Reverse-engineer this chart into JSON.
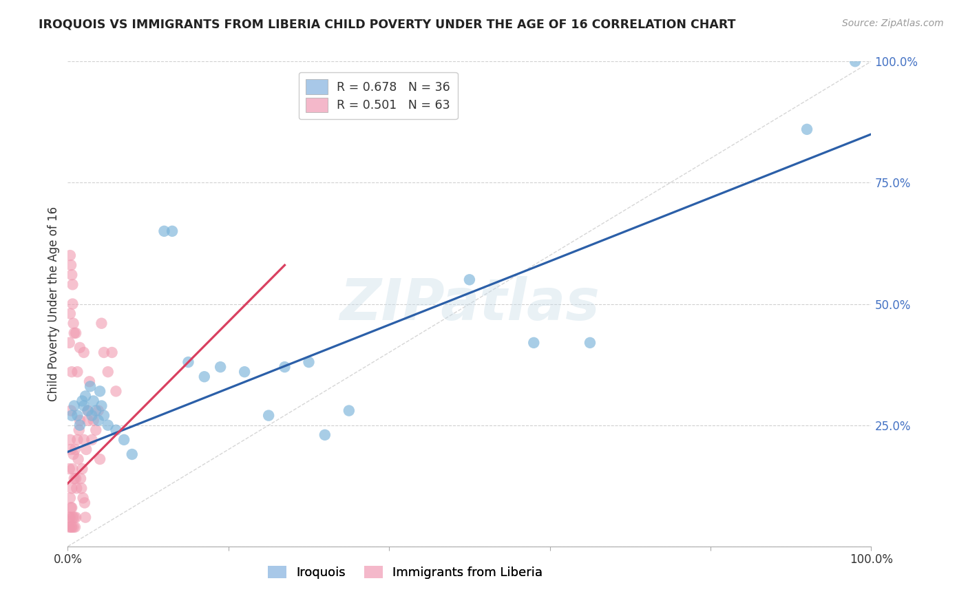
{
  "title": "IROQUOIS VS IMMIGRANTS FROM LIBERIA CHILD POVERTY UNDER THE AGE OF 16 CORRELATION CHART",
  "source": "Source: ZipAtlas.com",
  "ylabel": "Child Poverty Under the Age of 16",
  "xlim": [
    0,
    1
  ],
  "ylim": [
    0,
    1
  ],
  "yticks": [
    0.0,
    0.25,
    0.5,
    0.75,
    1.0
  ],
  "ytick_labels": [
    "",
    "25.0%",
    "50.0%",
    "75.0%",
    "100.0%"
  ],
  "xticks": [
    0.0,
    0.2,
    0.4,
    0.6,
    0.8,
    1.0
  ],
  "xtick_labels": [
    "0.0%",
    "",
    "",
    "",
    "",
    "100.0%"
  ],
  "iroquois_color": "#7ab3d9",
  "liberia_color": "#f09ab0",
  "iroquois_line_color": "#2b5fa8",
  "liberia_line_color": "#d94060",
  "diagonal_color": "#cccccc",
  "background_color": "#ffffff",
  "watermark": "ZIPatlas",
  "legend_label1": "R = 0.678   N = 36",
  "legend_label2": "R = 0.501   N = 63",
  "legend_color1": "#a8c8e8",
  "legend_color2": "#f4b8ca",
  "bottom_label1": "Iroquois",
  "bottom_label2": "Immigrants from Liberia",
  "iroquois_points": [
    [
      0.005,
      0.27
    ],
    [
      0.008,
      0.29
    ],
    [
      0.012,
      0.27
    ],
    [
      0.015,
      0.25
    ],
    [
      0.018,
      0.3
    ],
    [
      0.02,
      0.29
    ],
    [
      0.022,
      0.31
    ],
    [
      0.025,
      0.28
    ],
    [
      0.028,
      0.33
    ],
    [
      0.03,
      0.27
    ],
    [
      0.032,
      0.3
    ],
    [
      0.035,
      0.28
    ],
    [
      0.038,
      0.26
    ],
    [
      0.04,
      0.32
    ],
    [
      0.042,
      0.29
    ],
    [
      0.045,
      0.27
    ],
    [
      0.05,
      0.25
    ],
    [
      0.06,
      0.24
    ],
    [
      0.07,
      0.22
    ],
    [
      0.08,
      0.19
    ],
    [
      0.12,
      0.65
    ],
    [
      0.13,
      0.65
    ],
    [
      0.15,
      0.38
    ],
    [
      0.17,
      0.35
    ],
    [
      0.19,
      0.37
    ],
    [
      0.22,
      0.36
    ],
    [
      0.25,
      0.27
    ],
    [
      0.27,
      0.37
    ],
    [
      0.3,
      0.38
    ],
    [
      0.32,
      0.23
    ],
    [
      0.35,
      0.28
    ],
    [
      0.5,
      0.55
    ],
    [
      0.58,
      0.42
    ],
    [
      0.65,
      0.42
    ],
    [
      0.98,
      1.0
    ],
    [
      0.92,
      0.86
    ]
  ],
  "liberia_points": [
    [
      0.002,
      0.06
    ],
    [
      0.003,
      0.1
    ],
    [
      0.004,
      0.08
    ],
    [
      0.005,
      0.12
    ],
    [
      0.006,
      0.16
    ],
    [
      0.007,
      0.19
    ],
    [
      0.008,
      0.14
    ],
    [
      0.009,
      0.2
    ],
    [
      0.01,
      0.14
    ],
    [
      0.011,
      0.12
    ],
    [
      0.012,
      0.22
    ],
    [
      0.013,
      0.18
    ],
    [
      0.014,
      0.24
    ],
    [
      0.015,
      0.26
    ],
    [
      0.016,
      0.14
    ],
    [
      0.017,
      0.12
    ],
    [
      0.018,
      0.16
    ],
    [
      0.019,
      0.1
    ],
    [
      0.02,
      0.22
    ],
    [
      0.021,
      0.09
    ],
    [
      0.022,
      0.06
    ],
    [
      0.023,
      0.2
    ],
    [
      0.025,
      0.26
    ],
    [
      0.027,
      0.34
    ],
    [
      0.03,
      0.22
    ],
    [
      0.032,
      0.26
    ],
    [
      0.035,
      0.24
    ],
    [
      0.038,
      0.28
    ],
    [
      0.04,
      0.18
    ],
    [
      0.042,
      0.46
    ],
    [
      0.045,
      0.4
    ],
    [
      0.05,
      0.36
    ],
    [
      0.055,
      0.4
    ],
    [
      0.06,
      0.32
    ],
    [
      0.002,
      0.42
    ],
    [
      0.003,
      0.48
    ],
    [
      0.004,
      0.2
    ],
    [
      0.005,
      0.56
    ],
    [
      0.006,
      0.5
    ],
    [
      0.008,
      0.44
    ],
    [
      0.01,
      0.44
    ],
    [
      0.012,
      0.36
    ],
    [
      0.015,
      0.41
    ],
    [
      0.02,
      0.4
    ],
    [
      0.025,
      0.28
    ],
    [
      0.003,
      0.6
    ],
    [
      0.004,
      0.58
    ],
    [
      0.005,
      0.36
    ],
    [
      0.006,
      0.54
    ],
    [
      0.007,
      0.46
    ],
    [
      0.003,
      0.22
    ],
    [
      0.004,
      0.28
    ],
    [
      0.005,
      0.08
    ],
    [
      0.006,
      0.06
    ],
    [
      0.007,
      0.04
    ],
    [
      0.008,
      0.06
    ],
    [
      0.009,
      0.04
    ],
    [
      0.01,
      0.06
    ],
    [
      0.002,
      0.04
    ],
    [
      0.003,
      0.06
    ],
    [
      0.004,
      0.04
    ],
    [
      0.005,
      0.04
    ],
    [
      0.002,
      0.16
    ]
  ]
}
